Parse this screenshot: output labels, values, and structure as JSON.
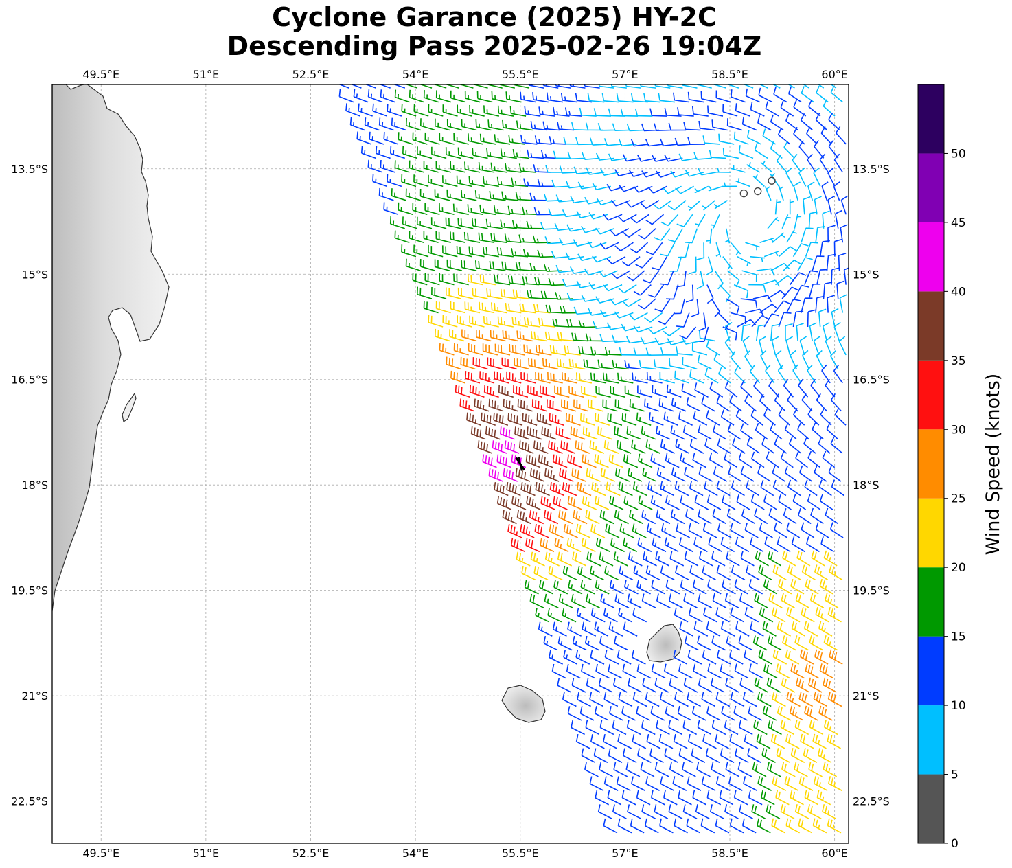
{
  "title": {
    "line1": "Cyclone Garance (2025) HY-2C",
    "line2": "Descending Pass 2025-02-26 19:04Z"
  },
  "map": {
    "lon_range": [
      48.8,
      60.2
    ],
    "lat_range": [
      -23.1,
      -12.3
    ],
    "lon_ticks": [
      {
        "value": 49.5,
        "label": "49.5°E"
      },
      {
        "value": 51.0,
        "label": "51°E"
      },
      {
        "value": 52.5,
        "label": "52.5°E"
      },
      {
        "value": 54.0,
        "label": "54°E"
      },
      {
        "value": 55.5,
        "label": "55.5°E"
      },
      {
        "value": 57.0,
        "label": "57°E"
      },
      {
        "value": 58.5,
        "label": "58.5°E"
      },
      {
        "value": 60.0,
        "label": "60°E"
      }
    ],
    "lat_ticks": [
      {
        "value": -13.5,
        "label": "13.5°S"
      },
      {
        "value": -15.0,
        "label": "15°S"
      },
      {
        "value": -16.5,
        "label": "16.5°S"
      },
      {
        "value": -18.0,
        "label": "18°S"
      },
      {
        "value": -19.5,
        "label": "19.5°S"
      },
      {
        "value": -21.0,
        "label": "21°S"
      },
      {
        "value": -22.5,
        "label": "22.5°S"
      }
    ],
    "gridlines": true,
    "center_marker": {
      "lon": 55.5,
      "lat": -17.7
    },
    "calm_circles": [
      {
        "lon": 58.7,
        "lat": -13.85
      },
      {
        "lon": 58.9,
        "lat": -13.82
      },
      {
        "lon": 59.1,
        "lat": -13.67
      }
    ],
    "landmasses": [
      "Madagascar",
      "Réunion",
      "Mauritius"
    ]
  },
  "colorbar": {
    "label": "Wind Speed (knots)",
    "ticks": [
      "0",
      "5",
      "10",
      "15",
      "20",
      "25",
      "30",
      "35",
      "40",
      "45",
      "50"
    ],
    "bins": [
      {
        "min": 0,
        "max": 5,
        "color": "#555555"
      },
      {
        "min": 5,
        "max": 10,
        "color": "#00bfff"
      },
      {
        "min": 10,
        "max": 15,
        "color": "#003cff"
      },
      {
        "min": 15,
        "max": 20,
        "color": "#009900"
      },
      {
        "min": 20,
        "max": 25,
        "color": "#ffd700"
      },
      {
        "min": 25,
        "max": 30,
        "color": "#ff8c00"
      },
      {
        "min": 30,
        "max": 35,
        "color": "#ff1010"
      },
      {
        "min": 35,
        "max": 40,
        "color": "#7b3a28"
      },
      {
        "min": 40,
        "max": 45,
        "color": "#ee00ee"
      },
      {
        "min": 45,
        "max": 50,
        "color": "#8000b3"
      },
      {
        "min": 50,
        "max": 55,
        "color": "#2d0060"
      }
    ]
  }
}
